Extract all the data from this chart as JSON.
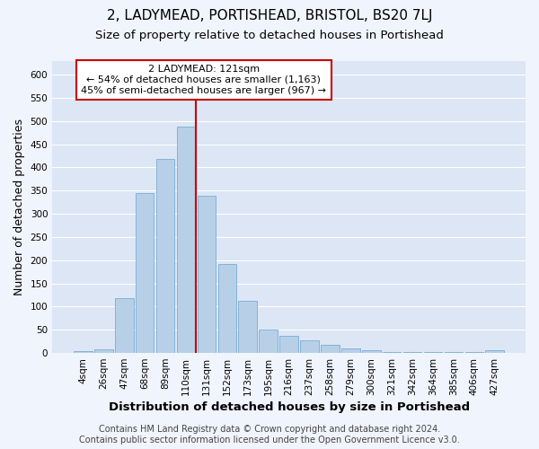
{
  "title": "2, LADYMEAD, PORTISHEAD, BRISTOL, BS20 7LJ",
  "subtitle": "Size of property relative to detached houses in Portishead",
  "xlabel": "Distribution of detached houses by size in Portishead",
  "ylabel": "Number of detached properties",
  "categories": [
    "4sqm",
    "26sqm",
    "47sqm",
    "68sqm",
    "89sqm",
    "110sqm",
    "131sqm",
    "152sqm",
    "173sqm",
    "195sqm",
    "216sqm",
    "237sqm",
    "258sqm",
    "279sqm",
    "300sqm",
    "321sqm",
    "342sqm",
    "364sqm",
    "385sqm",
    "406sqm",
    "427sqm"
  ],
  "values": [
    4,
    8,
    118,
    345,
    418,
    487,
    338,
    192,
    112,
    50,
    37,
    27,
    18,
    10,
    5,
    2,
    2,
    2,
    2,
    3,
    5
  ],
  "bar_color": "#b8cfe8",
  "bar_edge_color": "#7aadd4",
  "vline_index": 5.5,
  "vline_color": "#cc0000",
  "marker_label": "2 LADYMEAD: 121sqm",
  "annotation_line1": "← 54% of detached houses are smaller (1,163)",
  "annotation_line2": "45% of semi-detached houses are larger (967) →",
  "annotation_box_color": "#ffffff",
  "annotation_box_edge": "#cc0000",
  "footer1": "Contains HM Land Registry data © Crown copyright and database right 2024.",
  "footer2": "Contains public sector information licensed under the Open Government Licence v3.0.",
  "ylim": [
    0,
    630
  ],
  "yticks": [
    0,
    50,
    100,
    150,
    200,
    250,
    300,
    350,
    400,
    450,
    500,
    550,
    600
  ],
  "fig_bg_color": "#f0f4fc",
  "plot_bg_color": "#dce6f5",
  "grid_color": "#ffffff",
  "title_fontsize": 11,
  "subtitle_fontsize": 9.5,
  "axis_label_fontsize": 9,
  "tick_fontsize": 7.5,
  "annotation_fontsize": 8,
  "footer_fontsize": 7
}
